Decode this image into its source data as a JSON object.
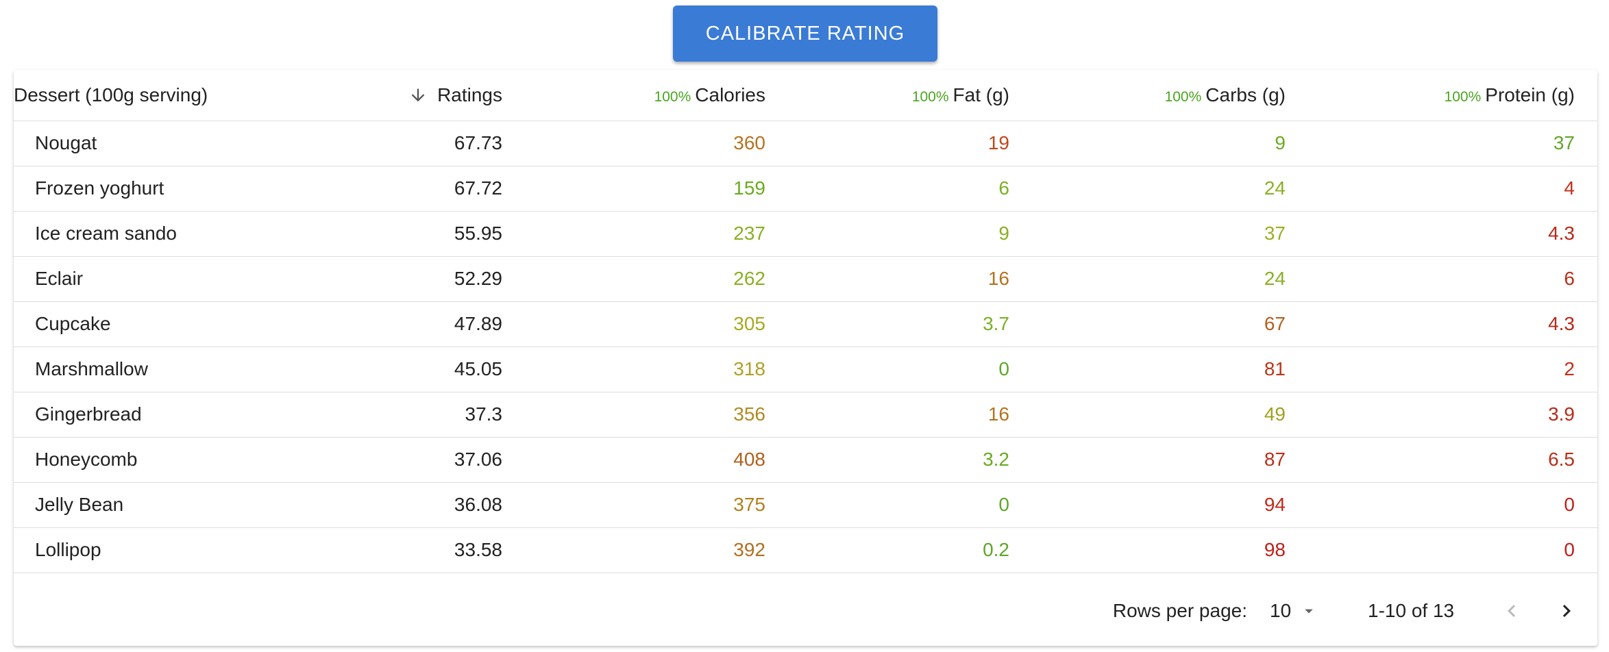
{
  "button": "CALIBRATE RATING",
  "table": {
    "columns": [
      {
        "label": "Dessert (100g serving)"
      },
      {
        "label": "Ratings"
      },
      {
        "badge": "100%",
        "label": "Calories"
      },
      {
        "badge": "100%",
        "label": "Fat (g)"
      },
      {
        "badge": "100%",
        "label": "Carbs (g)"
      },
      {
        "badge": "100%",
        "label": "Protein (g)"
      }
    ],
    "rows": [
      [
        "Nougat",
        67.73,
        360,
        19,
        9,
        37
      ],
      [
        "Frozen yoghurt",
        67.72,
        159,
        6,
        24,
        4
      ],
      [
        "Ice cream sando",
        55.95,
        237,
        9,
        37,
        4.3
      ],
      [
        "Eclair",
        52.29,
        262,
        16,
        24,
        6
      ],
      [
        "Cupcake",
        47.89,
        305,
        3.7,
        67,
        4.3
      ],
      [
        "Marshmallow",
        45.05,
        318,
        0,
        81,
        2
      ],
      [
        "Gingerbread",
        37.3,
        356,
        16,
        49,
        3.9
      ],
      [
        "Honeycomb",
        37.06,
        408,
        3.2,
        87,
        6.5
      ],
      [
        "Jelly Bean",
        36.08,
        375,
        0,
        94,
        0
      ],
      [
        "Lollipop",
        33.58,
        392,
        0.2,
        98,
        0
      ]
    ],
    "colors": [
      [
        "#b5731f",
        "#c04a1a",
        "#6aab1f",
        "#5fa62a"
      ],
      [
        "#6aab1f",
        "#7bb025",
        "#8aaf22",
        "#c0301a"
      ],
      [
        "#8aaf22",
        "#8aaf22",
        "#a0ad22",
        "#b82a18"
      ],
      [
        "#8aaf22",
        "#b5731f",
        "#8aaf22",
        "#b8301a"
      ],
      [
        "#a8a822",
        "#7bb025",
        "#b5601c",
        "#b82a18"
      ],
      [
        "#b0a025",
        "#5fa62a",
        "#b8381a",
        "#c0301a"
      ],
      [
        "#b08a22",
        "#b5731f",
        "#a0a022",
        "#b82a18"
      ],
      [
        "#b0601c",
        "#6aab1f",
        "#b8301a",
        "#b8301a"
      ],
      [
        "#b0801f",
        "#5fa62a",
        "#c02a18",
        "#c0201a"
      ],
      [
        "#b07020",
        "#5fa62a",
        "#c02018",
        "#c0201a"
      ]
    ]
  },
  "pagination": {
    "rows_per_page_label": "Rows per page:",
    "rows_per_page": "10",
    "range": "1-10 of 13"
  }
}
